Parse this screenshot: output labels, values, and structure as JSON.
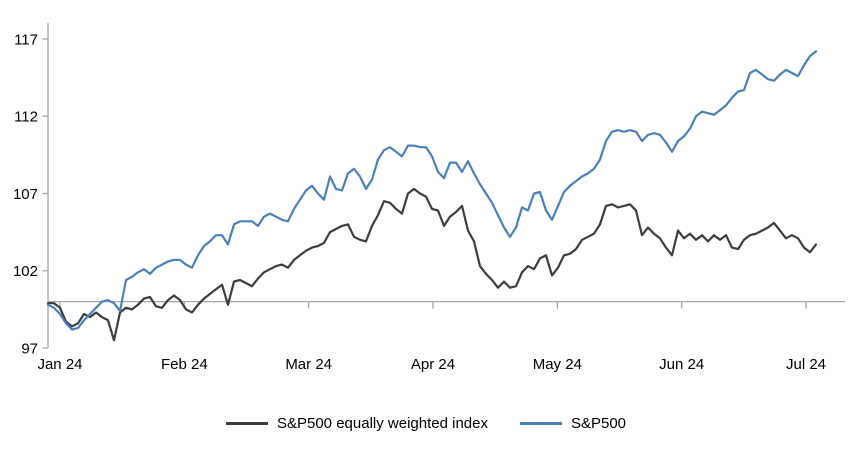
{
  "chart_data": {
    "type": "line",
    "title": "",
    "xlabel": "",
    "ylabel": "",
    "ylim": [
      97,
      117
    ],
    "y_ticks": [
      97,
      102,
      107,
      112,
      117
    ],
    "x_tick_labels": [
      "Jan 24",
      "Feb 24",
      "Mar 24",
      "Apr 24",
      "May 24",
      "Jun 24",
      "Jul 24"
    ],
    "baseline_value": 100,
    "grid": "off",
    "legend_position": "bottom",
    "axis_color": "#a6a6a6",
    "text_color": "#000000",
    "background_color": "#ffffff",
    "series": [
      {
        "name": "S&P500 equally weighted index",
        "color": "#3d3d3d",
        "values": [
          99.9,
          99.9,
          99.6,
          98.7,
          98.4,
          98.6,
          99.2,
          99.0,
          99.3,
          99.0,
          98.8,
          97.5,
          99.3,
          99.6,
          99.5,
          99.8,
          100.2,
          100.3,
          99.7,
          99.6,
          100.1,
          100.4,
          100.1,
          99.5,
          99.3,
          99.8,
          100.2,
          100.5,
          100.8,
          101.1,
          99.8,
          101.3,
          101.4,
          101.2,
          101.0,
          101.5,
          101.9,
          102.1,
          102.3,
          102.4,
          102.2,
          102.7,
          103.0,
          103.3,
          103.5,
          103.6,
          103.8,
          104.5,
          104.7,
          104.9,
          105.0,
          104.2,
          104.0,
          103.9,
          104.9,
          105.6,
          106.5,
          106.4,
          106.0,
          105.7,
          107.0,
          107.3,
          107.0,
          106.8,
          106.0,
          105.9,
          104.9,
          105.5,
          105.8,
          106.2,
          104.6,
          103.9,
          102.3,
          101.8,
          101.4,
          100.9,
          101.3,
          100.9,
          101.0,
          101.9,
          102.3,
          102.1,
          102.8,
          103.0,
          101.7,
          102.2,
          103.0,
          103.1,
          103.4,
          104.0,
          104.2,
          104.4,
          105.0,
          106.2,
          106.3,
          106.1,
          106.2,
          106.3,
          105.9,
          104.3,
          104.8,
          104.4,
          104.1,
          103.5,
          103.0,
          104.6,
          104.1,
          104.4,
          104.0,
          104.3,
          103.9,
          104.3,
          104.0,
          104.3,
          103.5,
          103.4,
          104.0,
          104.3,
          104.4,
          104.6,
          104.8,
          105.1,
          104.6,
          104.1,
          104.3,
          104.1,
          103.5,
          103.2,
          103.7
        ]
      },
      {
        "name": "S&P500",
        "color": "#4a80bd",
        "values": [
          99.8,
          99.6,
          99.2,
          98.6,
          98.2,
          98.3,
          98.8,
          99.2,
          99.6,
          100.0,
          100.1,
          99.9,
          99.4,
          101.4,
          101.6,
          101.9,
          102.1,
          101.8,
          102.2,
          102.4,
          102.6,
          102.7,
          102.7,
          102.4,
          102.2,
          103.0,
          103.6,
          103.9,
          104.3,
          104.3,
          103.7,
          105.0,
          105.2,
          105.2,
          105.2,
          104.9,
          105.5,
          105.7,
          105.5,
          105.3,
          105.2,
          106.0,
          106.6,
          107.2,
          107.5,
          107.0,
          106.6,
          108.1,
          107.3,
          107.2,
          108.3,
          108.6,
          108.1,
          107.3,
          107.9,
          109.2,
          109.8,
          110.0,
          109.7,
          109.4,
          110.1,
          110.1,
          110.0,
          110.0,
          109.4,
          108.4,
          108.0,
          109.0,
          109.0,
          108.4,
          109.1,
          108.3,
          107.6,
          107.0,
          106.4,
          105.6,
          104.8,
          104.2,
          104.8,
          106.1,
          105.9,
          107.0,
          107.1,
          105.9,
          105.3,
          106.2,
          107.1,
          107.5,
          107.8,
          108.1,
          108.3,
          108.6,
          109.2,
          110.4,
          111.0,
          111.1,
          111.0,
          111.1,
          111.0,
          110.4,
          110.8,
          110.9,
          110.8,
          110.3,
          109.7,
          110.4,
          110.7,
          111.2,
          112.0,
          112.3,
          112.2,
          112.1,
          112.4,
          112.7,
          113.2,
          113.6,
          113.7,
          114.8,
          115.0,
          114.7,
          114.4,
          114.3,
          114.7,
          115.0,
          114.8,
          114.6,
          115.3,
          115.9,
          116.2
        ]
      }
    ]
  }
}
